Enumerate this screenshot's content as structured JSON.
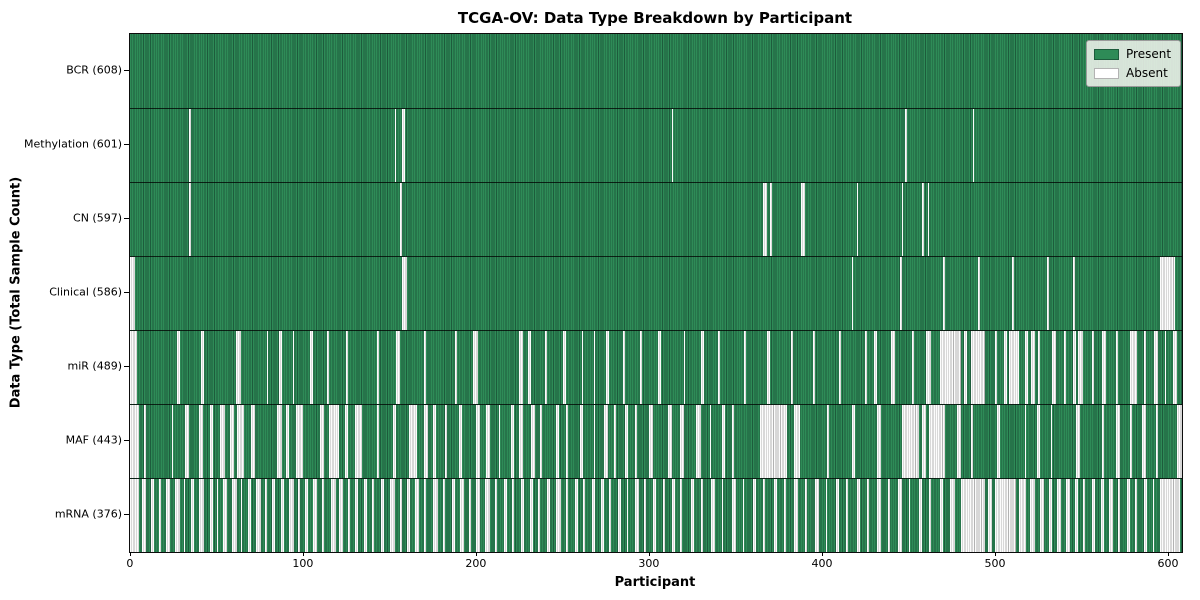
{
  "chart_data": {
    "type": "heatmap",
    "title": "TCGA-OV: Data Type Breakdown by Participant",
    "xlabel": "Participant",
    "ylabel": "Data Type (Total Sample Count)",
    "n_participants": 608,
    "x_ticks": [
      0,
      100,
      200,
      300,
      400,
      500,
      600
    ],
    "grid": false,
    "legend_position": "upper right",
    "colors": {
      "present": "#2e8b57",
      "present_edge": "#1d5c3c",
      "absent": "#ffffff",
      "absent_edge": "#b3b3b3",
      "legend_bg": "#eff2ec"
    },
    "legend": [
      {
        "label": "Present",
        "color": "#2e8b57"
      },
      {
        "label": "Absent",
        "color": "#ffffff"
      }
    ],
    "rows": [
      {
        "label": "BCR (608)",
        "data_type": "BCR",
        "present_count": 608,
        "absent_count": 0,
        "absent_runs": []
      },
      {
        "label": "Methylation (601)",
        "data_type": "Methylation",
        "present_count": 601,
        "absent_count": 7,
        "absent_runs": [
          [
            34,
            1
          ],
          [
            153,
            1
          ],
          [
            157,
            2
          ],
          [
            313,
            1
          ],
          [
            448,
            1
          ],
          [
            487,
            1
          ]
        ]
      },
      {
        "label": "CN (597)",
        "data_type": "CN",
        "present_count": 597,
        "absent_count": 11,
        "absent_runs": [
          [
            34,
            1
          ],
          [
            156,
            1
          ],
          [
            366,
            2
          ],
          [
            370,
            1
          ],
          [
            388,
            2
          ],
          [
            420,
            1
          ],
          [
            446,
            1
          ],
          [
            458,
            1
          ],
          [
            461,
            1
          ]
        ]
      },
      {
        "label": "Clinical (586)",
        "data_type": "Clinical",
        "present_count": 586,
        "absent_count": 22,
        "absent_runs": [
          [
            0,
            3
          ],
          [
            157,
            3
          ],
          [
            417,
            1
          ],
          [
            445,
            1
          ],
          [
            470,
            1
          ],
          [
            490,
            1
          ],
          [
            510,
            1
          ],
          [
            530,
            1
          ],
          [
            545,
            1
          ],
          [
            595,
            9
          ]
        ]
      },
      {
        "label": "miR (489)",
        "data_type": "miR",
        "present_count": 489,
        "absent_count": 119,
        "absent_runs": [
          [
            0,
            4
          ],
          [
            27,
            2
          ],
          [
            41,
            2
          ],
          [
            61,
            3
          ],
          [
            79,
            1
          ],
          [
            86,
            2
          ],
          [
            94,
            1
          ],
          [
            104,
            2
          ],
          [
            114,
            1
          ],
          [
            125,
            1
          ],
          [
            143,
            1
          ],
          [
            154,
            2
          ],
          [
            170,
            1
          ],
          [
            188,
            1
          ],
          [
            198,
            3
          ],
          [
            225,
            2
          ],
          [
            230,
            2
          ],
          [
            240,
            1
          ],
          [
            250,
            2
          ],
          [
            261,
            1
          ],
          [
            268,
            1
          ],
          [
            275,
            2
          ],
          [
            285,
            1
          ],
          [
            295,
            1
          ],
          [
            305,
            2
          ],
          [
            320,
            1
          ],
          [
            330,
            2
          ],
          [
            340,
            1
          ],
          [
            355,
            1
          ],
          [
            368,
            2
          ],
          [
            382,
            1
          ],
          [
            395,
            1
          ],
          [
            410,
            1
          ],
          [
            425,
            1
          ],
          [
            430,
            2
          ],
          [
            440,
            2
          ],
          [
            452,
            1
          ],
          [
            460,
            3
          ],
          [
            468,
            12
          ],
          [
            482,
            2
          ],
          [
            486,
            8
          ],
          [
            500,
            1
          ],
          [
            505,
            2
          ],
          [
            508,
            6
          ],
          [
            517,
            2
          ],
          [
            521,
            2
          ],
          [
            525,
            1
          ],
          [
            533,
            2
          ],
          [
            540,
            1
          ],
          [
            545,
            2
          ],
          [
            548,
            3
          ],
          [
            556,
            1
          ],
          [
            562,
            2
          ],
          [
            570,
            1
          ],
          [
            578,
            4
          ],
          [
            586,
            1
          ],
          [
            592,
            2
          ],
          [
            598,
            1
          ],
          [
            603,
            2
          ]
        ]
      },
      {
        "label": "MAF (443)",
        "data_type": "MAF",
        "present_count": 443,
        "absent_count": 165,
        "absent_runs": [
          [
            0,
            5
          ],
          [
            8,
            1
          ],
          [
            24,
            1
          ],
          [
            32,
            2
          ],
          [
            40,
            2
          ],
          [
            46,
            2
          ],
          [
            52,
            3
          ],
          [
            58,
            2
          ],
          [
            62,
            4
          ],
          [
            70,
            2
          ],
          [
            85,
            3
          ],
          [
            90,
            2
          ],
          [
            96,
            4
          ],
          [
            110,
            2
          ],
          [
            115,
            6
          ],
          [
            124,
            2
          ],
          [
            130,
            4
          ],
          [
            143,
            1
          ],
          [
            152,
            2
          ],
          [
            161,
            5
          ],
          [
            170,
            2
          ],
          [
            175,
            2
          ],
          [
            182,
            1
          ],
          [
            190,
            2
          ],
          [
            200,
            2
          ],
          [
            206,
            2
          ],
          [
            213,
            1
          ],
          [
            220,
            2
          ],
          [
            225,
            2
          ],
          [
            232,
            2
          ],
          [
            237,
            1
          ],
          [
            246,
            2
          ],
          [
            252,
            1
          ],
          [
            260,
            2
          ],
          [
            268,
            1
          ],
          [
            274,
            2
          ],
          [
            280,
            1
          ],
          [
            286,
            2
          ],
          [
            292,
            1
          ],
          [
            300,
            2
          ],
          [
            311,
            2
          ],
          [
            318,
            2
          ],
          [
            327,
            3
          ],
          [
            335,
            1
          ],
          [
            342,
            2
          ],
          [
            348,
            1
          ],
          [
            364,
            16
          ],
          [
            384,
            3
          ],
          [
            403,
            1
          ],
          [
            417,
            2
          ],
          [
            432,
            2
          ],
          [
            446,
            10
          ],
          [
            458,
            2
          ],
          [
            462,
            9
          ],
          [
            478,
            2
          ],
          [
            486,
            1
          ],
          [
            501,
            2
          ],
          [
            517,
            1
          ],
          [
            524,
            2
          ],
          [
            532,
            1
          ],
          [
            547,
            2
          ],
          [
            562,
            1
          ],
          [
            570,
            2
          ],
          [
            578,
            1
          ],
          [
            585,
            2
          ],
          [
            593,
            1
          ],
          [
            605,
            3
          ]
        ]
      },
      {
        "label": "mRNA (376)",
        "data_type": "mRNA",
        "present_count": 376,
        "absent_count": 232,
        "absent_runs": [
          [
            0,
            5
          ],
          [
            7,
            2
          ],
          [
            12,
            2
          ],
          [
            17,
            1
          ],
          [
            21,
            2
          ],
          [
            26,
            3
          ],
          [
            31,
            1
          ],
          [
            35,
            2
          ],
          [
            40,
            3
          ],
          [
            46,
            2
          ],
          [
            50,
            1
          ],
          [
            54,
            2
          ],
          [
            59,
            3
          ],
          [
            64,
            1
          ],
          [
            68,
            2
          ],
          [
            73,
            3
          ],
          [
            78,
            1
          ],
          [
            82,
            2
          ],
          [
            87,
            2
          ],
          [
            92,
            3
          ],
          [
            97,
            1
          ],
          [
            101,
            2
          ],
          [
            106,
            2
          ],
          [
            111,
            1
          ],
          [
            116,
            3
          ],
          [
            121,
            2
          ],
          [
            126,
            1
          ],
          [
            130,
            2
          ],
          [
            135,
            2
          ],
          [
            140,
            1
          ],
          [
            145,
            2
          ],
          [
            150,
            3
          ],
          [
            156,
            1
          ],
          [
            160,
            2
          ],
          [
            165,
            2
          ],
          [
            170,
            1
          ],
          [
            175,
            3
          ],
          [
            181,
            1
          ],
          [
            186,
            2
          ],
          [
            191,
            2
          ],
          [
            196,
            1
          ],
          [
            200,
            2
          ],
          [
            205,
            3
          ],
          [
            211,
            1
          ],
          [
            216,
            2
          ],
          [
            221,
            1
          ],
          [
            226,
            2
          ],
          [
            231,
            2
          ],
          [
            236,
            1
          ],
          [
            241,
            2
          ],
          [
            246,
            3
          ],
          [
            252,
            1
          ],
          [
            257,
            2
          ],
          [
            262,
            1
          ],
          [
            267,
            2
          ],
          [
            272,
            2
          ],
          [
            277,
            1
          ],
          [
            282,
            2
          ],
          [
            287,
            1
          ],
          [
            292,
            2
          ],
          [
            297,
            1
          ],
          [
            302,
            2
          ],
          [
            308,
            1
          ],
          [
            313,
            2
          ],
          [
            318,
            1
          ],
          [
            324,
            2
          ],
          [
            330,
            1
          ],
          [
            336,
            2
          ],
          [
            342,
            1
          ],
          [
            348,
            2
          ],
          [
            354,
            1
          ],
          [
            360,
            2
          ],
          [
            366,
            1
          ],
          [
            372,
            2
          ],
          [
            378,
            1
          ],
          [
            384,
            2
          ],
          [
            390,
            1
          ],
          [
            396,
            2
          ],
          [
            402,
            1
          ],
          [
            408,
            2
          ],
          [
            414,
            1
          ],
          [
            420,
            2
          ],
          [
            426,
            1
          ],
          [
            432,
            2
          ],
          [
            438,
            1
          ],
          [
            444,
            2
          ],
          [
            450,
            1
          ],
          [
            456,
            2
          ],
          [
            462,
            1
          ],
          [
            468,
            2
          ],
          [
            474,
            3
          ],
          [
            480,
            14
          ],
          [
            496,
            2
          ],
          [
            500,
            12
          ],
          [
            514,
            4
          ],
          [
            520,
            3
          ],
          [
            526,
            2
          ],
          [
            531,
            2
          ],
          [
            536,
            2
          ],
          [
            541,
            2
          ],
          [
            546,
            2
          ],
          [
            551,
            1
          ],
          [
            556,
            2
          ],
          [
            561,
            2
          ],
          [
            566,
            2
          ],
          [
            571,
            1
          ],
          [
            576,
            2
          ],
          [
            581,
            1
          ],
          [
            586,
            2
          ],
          [
            591,
            1
          ],
          [
            595,
            12
          ]
        ]
      }
    ]
  }
}
